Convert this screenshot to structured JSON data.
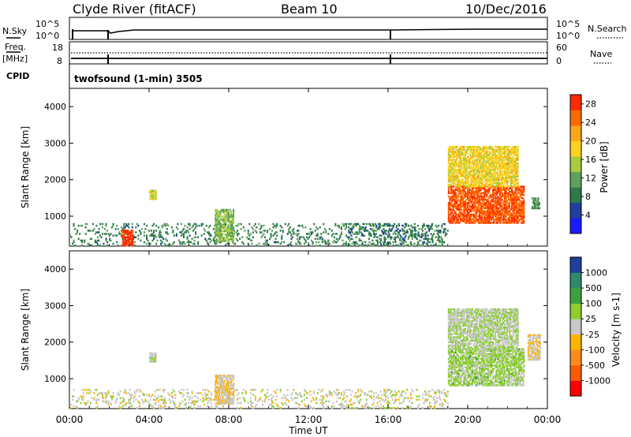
{
  "header": {
    "station": "Clyde River (fitACF)",
    "beam": "Beam 10",
    "date": "10/Dec/2016"
  },
  "top_panel": {
    "left_label": "N.Sky",
    "right_label": "N.Search",
    "left_ticks": [
      "10^5",
      "10^0"
    ],
    "right_ticks": [
      "10^5",
      "10^0"
    ]
  },
  "freq_panel": {
    "left_label_1": "Freq.",
    "left_label_2": "[MHz]",
    "right_label": "Nave",
    "left_ticks": [
      "18",
      "8"
    ],
    "right_ticks": [
      "60",
      "0"
    ]
  },
  "cpid_panel": {
    "label": "CPID",
    "text": "twofsound (1-min) 3505"
  },
  "colors": {
    "power_scale": [
      "#1a1aff",
      "#1f3f9f",
      "#2e7a4a",
      "#5fa05f",
      "#a8cc3c",
      "#ffd21f",
      "#ffa51a",
      "#ff6a00",
      "#ff2a00"
    ],
    "velocity_scale": [
      "#ff0000",
      "#ff5a00",
      "#ff8c1a",
      "#ffb400",
      "#c8c8c8",
      "#8ccf2e",
      "#3fa03f",
      "#2e8a6a",
      "#1f3f9f"
    ]
  },
  "chart_data": [
    {
      "type": "heatmap",
      "title": "",
      "xlabel": "Time UT",
      "ylabel": "Slant Range [km]",
      "x_ticks": [
        "00:00",
        "04:00",
        "08:00",
        "12:00",
        "16:00",
        "20:00",
        "00:00"
      ],
      "y_ticks": [
        "1000",
        "2000",
        "3000",
        "4000"
      ],
      "xlim_hours": [
        0,
        24
      ],
      "ylim_km": [
        180,
        4500
      ],
      "colorbar": {
        "label": "Power [dB]",
        "ticks": [
          "4",
          "8",
          "12",
          "16",
          "20",
          "24",
          "28"
        ],
        "range": [
          0,
          30
        ]
      },
      "scatter_regions": [
        {
          "t_start": 0.0,
          "t_end": 19.0,
          "r_min": 180,
          "r_max": 800,
          "level": 9
        },
        {
          "t_start": 2.6,
          "t_end": 3.2,
          "r_min": 180,
          "r_max": 600,
          "level": 28
        },
        {
          "t_start": 4.0,
          "t_end": 4.3,
          "r_min": 1450,
          "r_max": 1700,
          "level": 16
        },
        {
          "t_start": 7.3,
          "t_end": 8.2,
          "r_min": 300,
          "r_max": 1200,
          "level": 14
        },
        {
          "t_start": 14.0,
          "t_end": 18.8,
          "r_min": 180,
          "r_max": 800,
          "level": 8
        },
        {
          "t_start": 19.0,
          "t_end": 22.8,
          "r_min": 800,
          "r_max": 1800,
          "level": 26
        },
        {
          "t_start": 19.0,
          "t_end": 22.5,
          "r_min": 1800,
          "r_max": 2900,
          "level": 18
        },
        {
          "t_start": 23.2,
          "t_end": 23.6,
          "r_min": 1200,
          "r_max": 1500,
          "level": 10
        }
      ]
    },
    {
      "type": "heatmap",
      "title": "",
      "xlabel": "Time UT",
      "ylabel": "Slant Range [km]",
      "x_ticks": [
        "00:00",
        "04:00",
        "08:00",
        "12:00",
        "16:00",
        "20:00",
        "00:00"
      ],
      "y_ticks": [
        "1000",
        "2000",
        "3000",
        "4000"
      ],
      "xlim_hours": [
        0,
        24
      ],
      "ylim_km": [
        180,
        4500
      ],
      "colorbar": {
        "label": "Velocity [m s-1]",
        "ticks": [
          "-1000",
          "-500",
          "-100",
          "-25",
          "25",
          "100",
          "500",
          "1000"
        ],
        "range": [
          -1200,
          1200
        ]
      },
      "scatter_regions": [
        {
          "t_start": 0.0,
          "t_end": 19.0,
          "r_min": 180,
          "r_max": 700,
          "level": 0
        },
        {
          "t_start": 4.0,
          "t_end": 4.3,
          "r_min": 1450,
          "r_max": 1700,
          "level": 100
        },
        {
          "t_start": 7.3,
          "t_end": 8.2,
          "r_min": 300,
          "r_max": 1100,
          "level": -100
        },
        {
          "t_start": 19.0,
          "t_end": 22.8,
          "r_min": 800,
          "r_max": 1800,
          "level": 200
        },
        {
          "t_start": 19.0,
          "t_end": 22.5,
          "r_min": 1800,
          "r_max": 2900,
          "level": 100
        },
        {
          "t_start": 23.0,
          "t_end": 23.6,
          "r_min": 1500,
          "r_max": 2200,
          "level": -100
        }
      ]
    }
  ]
}
